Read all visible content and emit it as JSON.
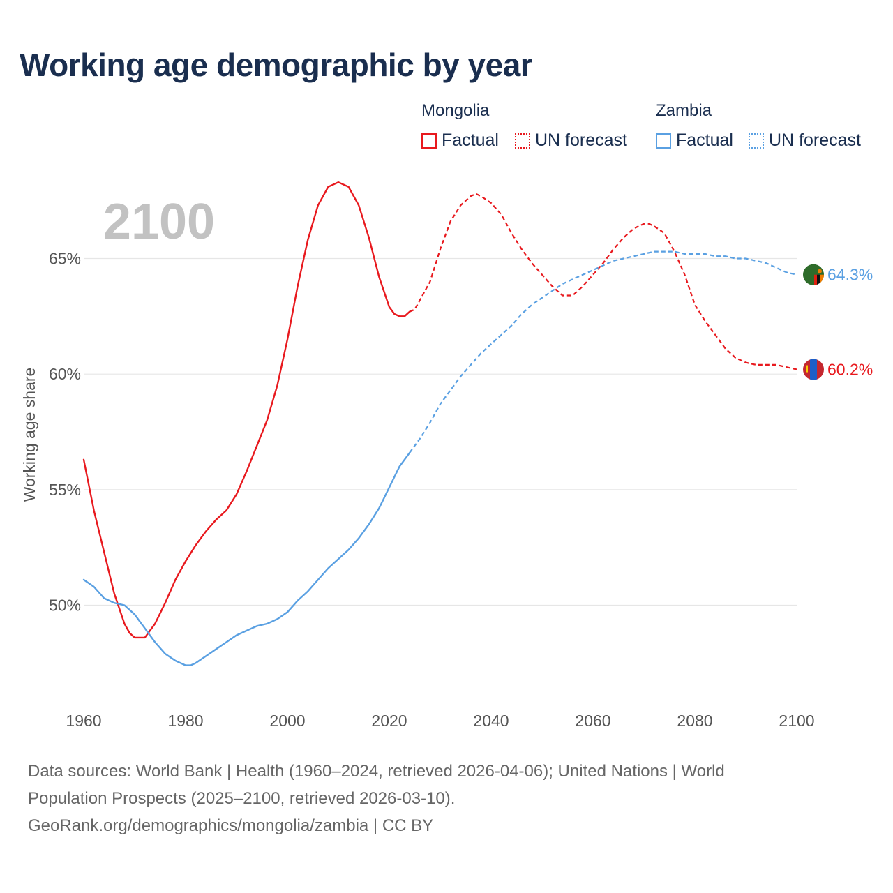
{
  "header": {
    "title": "Working age demographic by year"
  },
  "legend": {
    "groups": [
      {
        "name": "Mongolia",
        "color": "#e8191e",
        "factual_label": "Factual",
        "forecast_label": "UN forecast"
      },
      {
        "name": "Zambia",
        "color": "#5aa0e2",
        "factual_label": "Factual",
        "forecast_label": "UN forecast"
      }
    ]
  },
  "colors": {
    "mongolia": "#e8191e",
    "zambia": "#5aa0e2",
    "title": "#1a2e4f",
    "grid": "#e6e6e6",
    "year_watermark": "#c2c2c2"
  },
  "icons": {
    "mongolia_marker": "mongolia-flag-icon",
    "zambia_marker": "zambia-flag-icon"
  },
  "chart_data": {
    "type": "line",
    "title": "Working age demographic by year",
    "year_display": "2100",
    "ylabel": "Working age share",
    "xlabel": "",
    "xlim": [
      1960,
      2100
    ],
    "ylim": [
      46,
      69
    ],
    "x_ticks": [
      1960,
      1980,
      2000,
      2020,
      2040,
      2060,
      2080,
      2100
    ],
    "x_tick_labels": [
      "1960",
      "1980",
      "2000",
      "2020",
      "2040",
      "2060",
      "2080",
      "2100"
    ],
    "y_ticks": [
      50,
      55,
      60,
      65
    ],
    "y_tick_labels": [
      "50%",
      "55%",
      "60%",
      "65%"
    ],
    "grid": true,
    "factual_end_year": 2024,
    "series": [
      {
        "name": "Mongolia",
        "end_label": "60.2%",
        "points": [
          [
            1960,
            56.3
          ],
          [
            1962,
            54.1
          ],
          [
            1964,
            52.3
          ],
          [
            1966,
            50.5
          ],
          [
            1968,
            49.2
          ],
          [
            1969,
            48.8
          ],
          [
            1970,
            48.6
          ],
          [
            1972,
            48.6
          ],
          [
            1974,
            49.2
          ],
          [
            1976,
            50.1
          ],
          [
            1978,
            51.1
          ],
          [
            1980,
            51.9
          ],
          [
            1982,
            52.6
          ],
          [
            1984,
            53.2
          ],
          [
            1986,
            53.7
          ],
          [
            1988,
            54.1
          ],
          [
            1990,
            54.8
          ],
          [
            1992,
            55.8
          ],
          [
            1994,
            56.9
          ],
          [
            1996,
            58.0
          ],
          [
            1998,
            59.5
          ],
          [
            2000,
            61.5
          ],
          [
            2002,
            63.8
          ],
          [
            2004,
            65.8
          ],
          [
            2006,
            67.3
          ],
          [
            2008,
            68.1
          ],
          [
            2010,
            68.3
          ],
          [
            2012,
            68.1
          ],
          [
            2014,
            67.3
          ],
          [
            2016,
            65.9
          ],
          [
            2018,
            64.2
          ],
          [
            2020,
            62.9
          ],
          [
            2021,
            62.6
          ],
          [
            2022,
            62.5
          ],
          [
            2023,
            62.5
          ],
          [
            2024,
            62.7
          ],
          [
            2025,
            62.8
          ],
          [
            2026,
            63.2
          ],
          [
            2028,
            64.0
          ],
          [
            2030,
            65.4
          ],
          [
            2032,
            66.6
          ],
          [
            2034,
            67.3
          ],
          [
            2036,
            67.7
          ],
          [
            2037,
            67.8
          ],
          [
            2038,
            67.7
          ],
          [
            2040,
            67.4
          ],
          [
            2042,
            66.9
          ],
          [
            2044,
            66.1
          ],
          [
            2046,
            65.4
          ],
          [
            2048,
            64.8
          ],
          [
            2050,
            64.3
          ],
          [
            2052,
            63.8
          ],
          [
            2054,
            63.4
          ],
          [
            2056,
            63.4
          ],
          [
            2058,
            63.8
          ],
          [
            2060,
            64.3
          ],
          [
            2062,
            64.8
          ],
          [
            2064,
            65.4
          ],
          [
            2066,
            65.9
          ],
          [
            2068,
            66.3
          ],
          [
            2070,
            66.5
          ],
          [
            2071,
            66.5
          ],
          [
            2072,
            66.4
          ],
          [
            2074,
            66.1
          ],
          [
            2076,
            65.3
          ],
          [
            2078,
            64.3
          ],
          [
            2080,
            63.0
          ],
          [
            2082,
            62.3
          ],
          [
            2084,
            61.7
          ],
          [
            2086,
            61.1
          ],
          [
            2088,
            60.7
          ],
          [
            2090,
            60.5
          ],
          [
            2092,
            60.4
          ],
          [
            2094,
            60.4
          ],
          [
            2096,
            60.4
          ],
          [
            2098,
            60.3
          ],
          [
            2100,
            60.2
          ]
        ]
      },
      {
        "name": "Zambia",
        "end_label": "64.3%",
        "points": [
          [
            1960,
            51.1
          ],
          [
            1962,
            50.8
          ],
          [
            1964,
            50.3
          ],
          [
            1966,
            50.1
          ],
          [
            1968,
            50.0
          ],
          [
            1970,
            49.6
          ],
          [
            1972,
            49.0
          ],
          [
            1974,
            48.4
          ],
          [
            1976,
            47.9
          ],
          [
            1978,
            47.6
          ],
          [
            1980,
            47.4
          ],
          [
            1981,
            47.4
          ],
          [
            1982,
            47.5
          ],
          [
            1984,
            47.8
          ],
          [
            1986,
            48.1
          ],
          [
            1988,
            48.4
          ],
          [
            1990,
            48.7
          ],
          [
            1992,
            48.9
          ],
          [
            1994,
            49.1
          ],
          [
            1996,
            49.2
          ],
          [
            1998,
            49.4
          ],
          [
            2000,
            49.7
          ],
          [
            2002,
            50.2
          ],
          [
            2004,
            50.6
          ],
          [
            2006,
            51.1
          ],
          [
            2008,
            51.6
          ],
          [
            2010,
            52.0
          ],
          [
            2012,
            52.4
          ],
          [
            2014,
            52.9
          ],
          [
            2016,
            53.5
          ],
          [
            2018,
            54.2
          ],
          [
            2020,
            55.1
          ],
          [
            2022,
            56.0
          ],
          [
            2024,
            56.6
          ],
          [
            2026,
            57.2
          ],
          [
            2028,
            57.9
          ],
          [
            2030,
            58.7
          ],
          [
            2032,
            59.3
          ],
          [
            2034,
            59.9
          ],
          [
            2036,
            60.4
          ],
          [
            2038,
            60.9
          ],
          [
            2040,
            61.3
          ],
          [
            2042,
            61.7
          ],
          [
            2044,
            62.1
          ],
          [
            2046,
            62.6
          ],
          [
            2048,
            63.0
          ],
          [
            2050,
            63.3
          ],
          [
            2052,
            63.6
          ],
          [
            2054,
            63.9
          ],
          [
            2056,
            64.1
          ],
          [
            2058,
            64.3
          ],
          [
            2060,
            64.5
          ],
          [
            2062,
            64.7
          ],
          [
            2064,
            64.9
          ],
          [
            2066,
            65.0
          ],
          [
            2068,
            65.1
          ],
          [
            2070,
            65.2
          ],
          [
            2072,
            65.3
          ],
          [
            2074,
            65.3
          ],
          [
            2076,
            65.3
          ],
          [
            2078,
            65.2
          ],
          [
            2080,
            65.2
          ],
          [
            2082,
            65.2
          ],
          [
            2084,
            65.1
          ],
          [
            2086,
            65.1
          ],
          [
            2088,
            65.0
          ],
          [
            2090,
            65.0
          ],
          [
            2092,
            64.9
          ],
          [
            2094,
            64.8
          ],
          [
            2096,
            64.6
          ],
          [
            2098,
            64.4
          ],
          [
            2100,
            64.3
          ]
        ]
      }
    ]
  },
  "footer": {
    "line1": "Data sources: World Bank | Health (1960–2024, retrieved 2026-04-06); United Nations | World",
    "line2": "Population Prospects (2025–2100, retrieved 2026-03-10).",
    "line3": "GeoRank.org/demographics/mongolia/zambia | CC BY"
  }
}
